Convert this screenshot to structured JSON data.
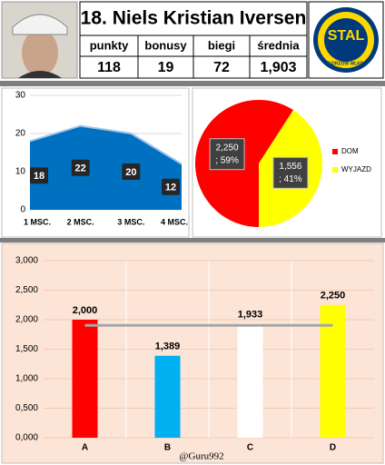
{
  "header": {
    "title": "18. Niels Kristian Iversen",
    "stats": {
      "labels": [
        "punkty",
        "bonusy",
        "biegi",
        "średnia"
      ],
      "values": [
        "118",
        "19",
        "72",
        "1,903"
      ]
    },
    "logo": {
      "text": "STAL",
      "subtext": "GORZÓW WLKP."
    }
  },
  "chart_data": [
    {
      "type": "area",
      "categories": [
        "1 MSC.",
        "2 MSC.",
        "3 MSC.",
        "4 MSC."
      ],
      "values": [
        18,
        22,
        20,
        12
      ],
      "color": "#0070c0",
      "ylim": [
        0,
        30
      ],
      "yticks": [
        0,
        10,
        20,
        30
      ],
      "grid": true
    },
    {
      "type": "pie",
      "categories": [
        "DOM",
        "WYJAZD"
      ],
      "values": [
        2250,
        1556
      ],
      "value_labels": [
        "2,250",
        "1,556"
      ],
      "percent_labels": [
        "; 59%",
        "; 41%"
      ],
      "colors": [
        "#ff0000",
        "#ffff00"
      ],
      "legend": "right"
    },
    {
      "type": "bar",
      "categories": [
        "A",
        "B",
        "C",
        "D"
      ],
      "values": [
        2.0,
        1.389,
        1.933,
        2.25
      ],
      "value_labels": [
        "2,000",
        "1,389",
        "1,933",
        "2,250"
      ],
      "colors": [
        "#ff0000",
        "#00b0f0",
        "#ffffff",
        "#ffff00"
      ],
      "reference_line": 1.903,
      "ylim": [
        0,
        3
      ],
      "grid": true,
      "yticks": [
        {
          "value": 0,
          "label": "0,000"
        },
        {
          "value": 0.5,
          "label": "0,500"
        },
        {
          "value": 1,
          "label": "1,000"
        },
        {
          "value": 1.5,
          "label": "1,500"
        },
        {
          "value": 2,
          "label": "2,000"
        },
        {
          "value": 2.5,
          "label": "2,500"
        },
        {
          "value": 3,
          "label": "3,000"
        }
      ]
    }
  ],
  "footer": "@Guru992"
}
